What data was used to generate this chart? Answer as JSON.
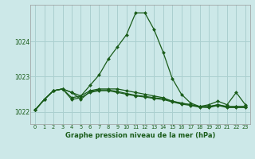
{
  "title": "Graphe pression niveau de la mer (hPa)",
  "background_color": "#cce8e8",
  "grid_color": "#aacfcf",
  "line_color": "#1a5c1a",
  "marker_color": "#1a5c1a",
  "xlim": [
    -0.5,
    23.5
  ],
  "ylim": [
    1021.65,
    1025.05
  ],
  "yticks": [
    1022,
    1023,
    1024
  ],
  "xticks": [
    0,
    1,
    2,
    3,
    4,
    5,
    6,
    7,
    8,
    9,
    10,
    11,
    12,
    13,
    14,
    15,
    16,
    17,
    18,
    19,
    20,
    21,
    22,
    23
  ],
  "series": [
    [
      1022.05,
      1022.35,
      1022.6,
      1022.65,
      1022.55,
      1022.45,
      1022.75,
      1023.05,
      1023.5,
      1023.85,
      1024.2,
      1024.82,
      1024.82,
      1024.35,
      1023.7,
      1022.95,
      1022.5,
      1022.25,
      1022.15,
      1022.2,
      1022.3,
      1022.2,
      1022.55,
      1022.2
    ],
    [
      1022.05,
      1022.35,
      1022.6,
      1022.65,
      1022.4,
      1022.45,
      1022.6,
      1022.65,
      1022.65,
      1022.65,
      1022.6,
      1022.55,
      1022.5,
      1022.45,
      1022.4,
      1022.3,
      1022.25,
      1022.2,
      1022.15,
      1022.15,
      1022.2,
      1022.15,
      1022.15,
      1022.15
    ],
    [
      1022.05,
      1022.35,
      1022.6,
      1022.65,
      1022.35,
      1022.4,
      1022.55,
      1022.6,
      1022.6,
      1022.55,
      1022.5,
      1022.45,
      1022.42,
      1022.38,
      1022.35,
      1022.28,
      1022.22,
      1022.18,
      1022.13,
      1022.12,
      1022.18,
      1022.12,
      1022.12,
      1022.12
    ],
    [
      1022.05,
      1022.35,
      1022.6,
      1022.65,
      1022.55,
      1022.35,
      1022.58,
      1022.62,
      1022.62,
      1022.58,
      1022.52,
      1022.47,
      1022.44,
      1022.4,
      1022.37,
      1022.3,
      1022.24,
      1022.2,
      1022.15,
      1022.14,
      1022.2,
      1022.14,
      1022.14,
      1022.14
    ]
  ]
}
